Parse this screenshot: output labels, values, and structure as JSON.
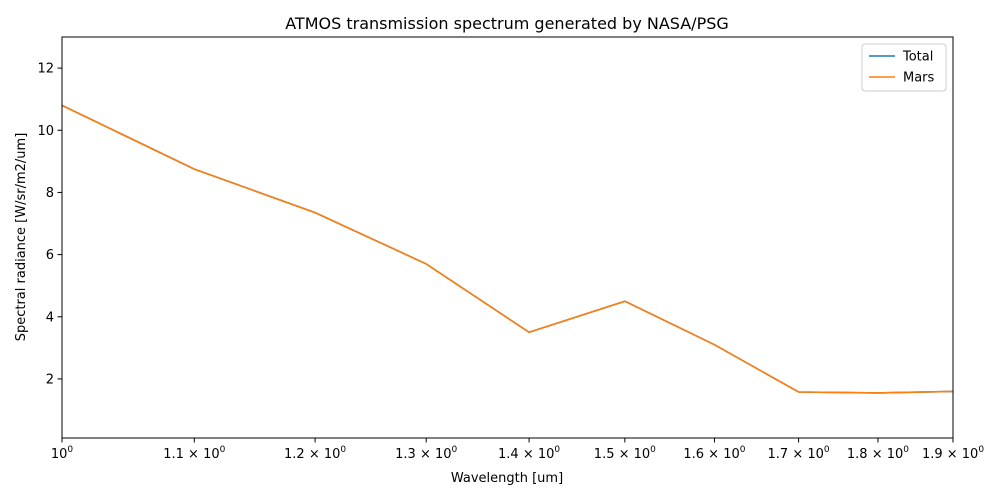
{
  "chart_data": {
    "type": "line",
    "title": "ATMOS transmission spectrum generated by NASA/PSG",
    "xlabel": "Wavelength [um]",
    "ylabel": "Spectral radiance [W/sr/m2/um]",
    "xscale": "log",
    "xlim": [
      1.0,
      1.9
    ],
    "ylim": [
      0.1,
      13.0
    ],
    "x_ticks": [
      {
        "value": 1.0,
        "base": "10",
        "exp": "0"
      },
      {
        "value": 1.1,
        "base": "1.1 × 10",
        "exp": "0"
      },
      {
        "value": 1.2,
        "base": "1.2 × 10",
        "exp": "0"
      },
      {
        "value": 1.3,
        "base": "1.3 × 10",
        "exp": "0"
      },
      {
        "value": 1.4,
        "base": "1.4 × 10",
        "exp": "0"
      },
      {
        "value": 1.5,
        "base": "1.5 × 10",
        "exp": "0"
      },
      {
        "value": 1.6,
        "base": "1.6 × 10",
        "exp": "0"
      },
      {
        "value": 1.7,
        "base": "1.7 × 10",
        "exp": "0"
      },
      {
        "value": 1.8,
        "base": "1.8 × 10",
        "exp": "0"
      },
      {
        "value": 1.9,
        "base": "1.9 × 10",
        "exp": "0"
      }
    ],
    "y_ticks": [
      2,
      4,
      6,
      8,
      10,
      12
    ],
    "grid": false,
    "legend_position": "top-right",
    "x": [
      1.0,
      1.1,
      1.2,
      1.3,
      1.4,
      1.5,
      1.6,
      1.7,
      1.8,
      1.9
    ],
    "series": [
      {
        "name": "Total",
        "color": "#1f77b4",
        "values": [
          10.8,
          8.75,
          7.35,
          5.7,
          3.5,
          4.5,
          3.1,
          1.58,
          1.55,
          1.6
        ]
      },
      {
        "name": "Mars",
        "color": "#ff7f0e",
        "values": [
          10.8,
          8.75,
          7.35,
          5.7,
          3.5,
          4.5,
          3.1,
          1.58,
          1.55,
          1.6
        ]
      }
    ]
  }
}
